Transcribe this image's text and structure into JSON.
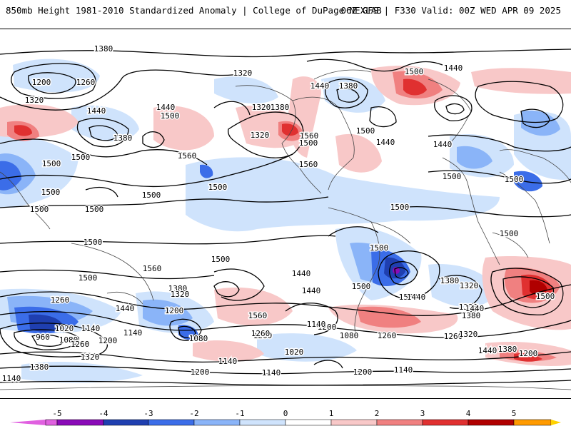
{
  "header": {
    "title_left": "850mb Height 1981-2010 Standardized Anomaly | College of DuPage NEXLAB",
    "title_right": "06Z GFS | F330 Valid: 00Z WED APR 09 2025"
  },
  "colorbar": {
    "ticks": [
      "-5",
      "-4",
      "-3",
      "-2",
      "-1",
      "0",
      "1",
      "2",
      "3",
      "4",
      "5"
    ],
    "colors": [
      "#e060e0",
      "#8a0bb8",
      "#1f3fb0",
      "#3b6de8",
      "#8ab4f8",
      "#cfe3fc",
      "#ffffff",
      "#f8c8c8",
      "#f08080",
      "#e03030",
      "#b00000",
      "#ff9a00",
      "#ffd200"
    ]
  },
  "contour_labels": [
    {
      "text": "1380"
    },
    {
      "text": "1320"
    },
    {
      "text": "1200"
    },
    {
      "text": "1260"
    },
    {
      "text": "1320"
    },
    {
      "text": "1440"
    },
    {
      "text": "1440"
    },
    {
      "text": "1500"
    },
    {
      "text": "1380"
    },
    {
      "text": "1560"
    },
    {
      "text": "1500"
    },
    {
      "text": "1500"
    },
    {
      "text": "1560"
    },
    {
      "text": "1500"
    },
    {
      "text": "1500"
    },
    {
      "text": "1320"
    },
    {
      "text": "1320"
    },
    {
      "text": "1380"
    },
    {
      "text": "1440"
    },
    {
      "text": "1380"
    },
    {
      "text": "1500"
    },
    {
      "text": "1440"
    },
    {
      "text": "1560"
    },
    {
      "text": "1500"
    },
    {
      "text": "1500"
    },
    {
      "text": "1440"
    },
    {
      "text": "1440"
    },
    {
      "text": "1500"
    },
    {
      "text": "1500"
    },
    {
      "text": "1500"
    },
    {
      "text": "1500"
    },
    {
      "text": "1500"
    },
    {
      "text": "1500"
    },
    {
      "text": "1500"
    },
    {
      "text": "1500"
    },
    {
      "text": "1560"
    },
    {
      "text": "1500"
    },
    {
      "text": "1500"
    },
    {
      "text": "1500"
    },
    {
      "text": "1500"
    },
    {
      "text": "1440"
    },
    {
      "text": "1440"
    },
    {
      "text": "1560"
    },
    {
      "text": "1380"
    },
    {
      "text": "1320"
    },
    {
      "text": "1200"
    },
    {
      "text": "1260"
    },
    {
      "text": "1440"
    },
    {
      "text": "1380"
    },
    {
      "text": "1320"
    },
    {
      "text": "1140"
    },
    {
      "text": "1260"
    },
    {
      "text": "1200"
    },
    {
      "text": "1020"
    },
    {
      "text": "960"
    },
    {
      "text": "1080"
    },
    {
      "text": "1260"
    },
    {
      "text": "1140"
    },
    {
      "text": "1200"
    },
    {
      "text": "1080"
    },
    {
      "text": "1380"
    },
    {
      "text": "1320"
    },
    {
      "text": "1560"
    },
    {
      "text": "1260"
    },
    {
      "text": "1140"
    },
    {
      "text": "1080"
    },
    {
      "text": "1020"
    },
    {
      "text": "1140"
    },
    {
      "text": "1200"
    },
    {
      "text": "1140"
    },
    {
      "text": "1200"
    },
    {
      "text": "1140"
    },
    {
      "text": "1260"
    },
    {
      "text": "1260"
    },
    {
      "text": "1320"
    },
    {
      "text": "1380"
    },
    {
      "text": "1440"
    },
    {
      "text": "1200"
    },
    {
      "text": "1500"
    },
    {
      "text": "1440"
    },
    {
      "text": "1440"
    },
    {
      "text": "1380"
    },
    {
      "text": "1320"
    },
    {
      "text": "1140"
    }
  ]
}
